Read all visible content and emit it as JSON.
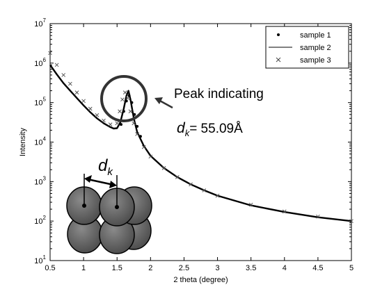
{
  "chart_data": {
    "type": "scatter",
    "title": "",
    "xlabel": "2 theta (degree)",
    "ylabel": "Intensity",
    "xlim": [
      0.5,
      5
    ],
    "ylim": [
      10,
      10000000
    ],
    "yscale": "log",
    "xticks": [
      0.5,
      1,
      1.5,
      2,
      2.5,
      3,
      3.5,
      4,
      4.5,
      5
    ],
    "xtick_labels": [
      "0.5",
      "1",
      "1.5",
      "2",
      "2.5",
      "3",
      "3.5",
      "4",
      "4.5",
      "5"
    ],
    "ytick_exponents": [
      1,
      2,
      3,
      4,
      5,
      6,
      7
    ],
    "ytick_base": "10",
    "grid": false,
    "legend_position": "top-right",
    "series": [
      {
        "name": "sample 1",
        "marker": "dot",
        "x": [
          1.56,
          1.6,
          1.64,
          1.68,
          1.72,
          1.76,
          1.8,
          1.85
        ],
        "y": [
          28000,
          60000,
          110000,
          150000,
          100000,
          50000,
          25000,
          14000
        ]
      },
      {
        "name": "sample 2",
        "marker": "line",
        "x": [
          0.5,
          0.6,
          0.7,
          0.8,
          0.9,
          1.0,
          1.1,
          1.2,
          1.3,
          1.4,
          1.45,
          1.5,
          1.55,
          1.6,
          1.64,
          1.67,
          1.7,
          1.75,
          1.8,
          1.9,
          2.0,
          2.2,
          2.4,
          2.6,
          2.8,
          3.0,
          3.5,
          4.0,
          4.5,
          5.0
        ],
        "y": [
          900000,
          520000,
          310000,
          200000,
          130000,
          85000,
          57000,
          40000,
          30000,
          24000,
          22000,
          22500,
          32000,
          70000,
          150000,
          200000,
          120000,
          40000,
          18000,
          8000,
          4500,
          2200,
          1300,
          850,
          600,
          440,
          250,
          170,
          125,
          100
        ]
      },
      {
        "name": "sample 3",
        "marker": "x",
        "x": [
          0.5,
          0.6,
          0.7,
          0.8,
          0.9,
          1.0,
          1.1,
          1.2,
          1.3,
          1.4,
          1.5,
          1.54,
          1.58,
          1.62,
          1.66,
          1.7,
          1.75,
          1.8,
          1.9,
          2.0,
          2.2,
          2.4,
          2.6,
          2.8,
          3.0,
          3.5,
          4.0,
          4.5,
          5.0
        ],
        "y": [
          1800000,
          900000,
          500000,
          300000,
          180000,
          110000,
          70000,
          48000,
          35000,
          28000,
          30000,
          60000,
          120000,
          180000,
          130000,
          60000,
          30000,
          16000,
          7500,
          4300,
          2200,
          1300,
          850,
          600,
          440,
          260,
          175,
          130,
          100
        ]
      }
    ],
    "annotations": [
      {
        "text": "Peak indicating",
        "circle_center": [
          1.62,
          110000
        ]
      },
      {
        "symbol": "d",
        "subscript": "k",
        "value_text": "= 55.09Å"
      },
      {
        "symbol": "d",
        "subscript": "k",
        "inset": "close-packed spheres schematic"
      }
    ]
  }
}
